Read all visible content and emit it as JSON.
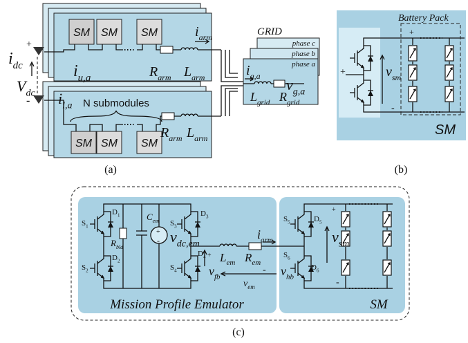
{
  "panel_a": {
    "caption": "(a)",
    "submodules_upper": [
      "SM",
      "SM",
      "SM"
    ],
    "submodules_lower": [
      "SM",
      "SM",
      "SM"
    ],
    "n_submodules": "N submodules",
    "i_dc": {
      "main": "i",
      "sub": "dc"
    },
    "v_dc": {
      "main": "V",
      "sub": "dc"
    },
    "i_upper": {
      "main": "i",
      "sub": "u,a"
    },
    "i_lower": {
      "main": "i",
      "sub": "l,a"
    },
    "r_arm_upper": {
      "main": "R",
      "sub": "arm"
    },
    "l_arm_upper": {
      "main": "L",
      "sub": "arm"
    },
    "i_arm": {
      "main": "i",
      "sub": "arm"
    },
    "r_arm_lower": {
      "main": "R",
      "sub": "arm"
    },
    "l_arm_lower": {
      "main": "L",
      "sub": "arm"
    },
    "grid": "GRID",
    "phases": [
      "phase c",
      "phase b",
      "phase a"
    ],
    "i_g": {
      "main": "i",
      "sub": "g,a"
    },
    "v_g": {
      "main": "v",
      "sub": "g,a"
    },
    "l_grid": {
      "main": "L",
      "sub": "grid"
    },
    "r_grid": {
      "main": "R",
      "sub": "grid"
    },
    "signs": [
      "+",
      "-"
    ]
  },
  "panel_b": {
    "caption": "(b)",
    "title": "Battery Pack",
    "v_sm": {
      "main": "v",
      "sub": "sm"
    },
    "module": "SM",
    "signs": [
      "+",
      "+",
      "-"
    ]
  },
  "panel_c": {
    "caption": "(c)",
    "emulator": "Mission Profile Emulator",
    "module": "SM",
    "s1": {
      "main": "S",
      "sub": "1"
    },
    "d1": {
      "main": "D",
      "sub": "1"
    },
    "s2": {
      "main": "S",
      "sub": "2"
    },
    "d2": {
      "main": "D",
      "sub": "2"
    },
    "s3": {
      "main": "S",
      "sub": "3"
    },
    "d3": {
      "main": "D",
      "sub": "3"
    },
    "s4": {
      "main": "S",
      "sub": "4"
    },
    "d4": {
      "main": "D",
      "sub": "4"
    },
    "s5": {
      "main": "S",
      "sub": "5"
    },
    "d5": {
      "main": "D",
      "sub": "5"
    },
    "s6": {
      "main": "S",
      "sub": "6"
    },
    "d6": {
      "main": "D",
      "sub": "6"
    },
    "c_em": {
      "main": "C",
      "sub": "em"
    },
    "r_bld": {
      "main": "R",
      "sub": "bld"
    },
    "v_dc_em": {
      "main": "v",
      "sub": "dc,em"
    },
    "l_em": {
      "main": "L",
      "sub": "em"
    },
    "r_em": {
      "main": "R",
      "sub": "em"
    },
    "i_arm": {
      "main": "i",
      "sub": "arm"
    },
    "v_fb": {
      "main": "v",
      "sub": "fb"
    },
    "v_em": {
      "main": "v",
      "sub": "em"
    },
    "v_hb": {
      "main": "v",
      "sub": "hb"
    },
    "v_sm": {
      "main": "v",
      "sub": "sm"
    },
    "signs": [
      "+",
      "-",
      "+",
      "-",
      "+",
      "-"
    ]
  }
}
